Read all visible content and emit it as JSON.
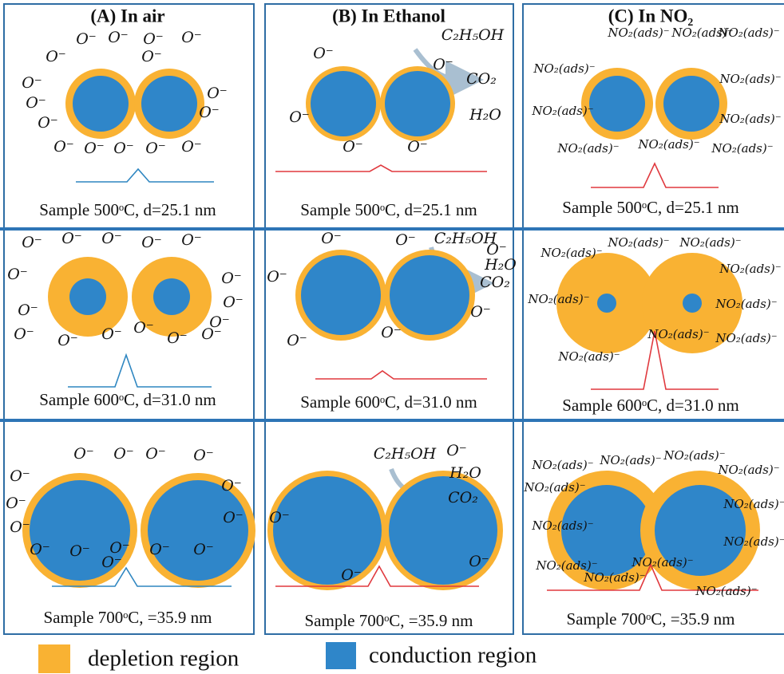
{
  "panels": [
    {
      "title": "(A) In air",
      "cells": [
        {
          "caption": "Sample 500ᵒC, d=25.1 nm",
          "labels": [
            "O⁻",
            "O⁻",
            "O⁻",
            "O⁻",
            "O⁻",
            "O⁻",
            "O⁻",
            "O⁻",
            "O⁻",
            "O⁻",
            "O⁻",
            "O⁻",
            "O⁻",
            "O⁻",
            "O⁻",
            "O⁻"
          ]
        },
        {
          "caption": "Sample 600ᵒC, d=31.0 nm",
          "labels": [
            "O⁻",
            "O⁻",
            "O⁻",
            "O⁻",
            "O⁻",
            "O⁻",
            "O⁻",
            "O⁻",
            "O⁻",
            "O⁻",
            "O⁻",
            "O⁻",
            "O⁻",
            "O⁻",
            "O⁻",
            "O⁻"
          ]
        },
        {
          "caption": "Sample 700ᵒC, =35.9 nm",
          "labels": [
            "O⁻",
            "O⁻",
            "O⁻",
            "O⁻",
            "O⁻",
            "O⁻",
            "O⁻",
            "O⁻",
            "O⁻",
            "O⁻",
            "O⁻",
            "O⁻",
            "O⁻",
            "O⁻",
            "O⁻"
          ]
        }
      ]
    },
    {
      "title": "(B) In Ethanol",
      "cells": [
        {
          "caption": "Sample 500ᵒC, d=25.1 nm",
          "labels": [
            "C₂H₅OH",
            "O⁻",
            "O⁻",
            "CO₂",
            "H₂O",
            "O⁻",
            "O⁻",
            "O⁻"
          ]
        },
        {
          "caption": "Sample 600ᵒC, d=31.0 nm",
          "labels": [
            "O⁻",
            "O⁻",
            "C₂H₅OH",
            "O⁻",
            "H₂O",
            "CO₂",
            "O⁻",
            "O⁻",
            "O⁻",
            "O⁻"
          ]
        },
        {
          "caption": "Sample 700ᵒC, =35.9 nm",
          "labels": [
            "C₂H₅OH",
            "O⁻",
            "H₂O",
            "CO₂",
            "O⁻",
            "O⁻",
            "O⁻"
          ]
        }
      ]
    },
    {
      "title": "(C) In NO₂",
      "cells": [
        {
          "caption": "Sample 500ᵒC, d=25.1 nm",
          "labels": [
            "NO₂(ads)⁻",
            "NO₂(ads)⁻",
            "NO₂(ads)⁻",
            "NO₂(ads)⁻",
            "NO₂(ads)⁻",
            "NO₂(ads)⁻",
            "NO₂(ads)⁻",
            "NO₂(ads)⁻",
            "NO₂(ads)⁻",
            "NO₂(ads)⁻"
          ]
        },
        {
          "caption": "Sample 600ᵒC, d=31.0 nm",
          "labels": [
            "NO₂(ads)⁻",
            "NO₂(ads)⁻",
            "NO₂(ads)⁻",
            "NO₂(ads)⁻",
            "NO₂(ads)⁻",
            "NO₂(ads)⁻",
            "NO₂(ads)⁻",
            "NO₂(ads)⁻",
            "NO₂(ads)⁻"
          ]
        },
        {
          "caption": "Sample 700ᵒC, =35.9 nm",
          "labels": [
            "NO₂(ads)⁻",
            "NO₂(ads)⁻",
            "NO₂(ads)⁻",
            "NO₂(ads)⁻",
            "NO₂(ads)⁻",
            "NO₂(ads)⁻",
            "NO₂(ads)⁻",
            "NO₂(ads)⁻",
            "NO₂(ads)⁻",
            "NO₂(ads)⁻",
            "NO₂(ads)⁻",
            "NO₂(ads)⁻"
          ]
        }
      ]
    }
  ],
  "legend": {
    "depletion": "depletion region",
    "conduction": "conduction region"
  }
}
